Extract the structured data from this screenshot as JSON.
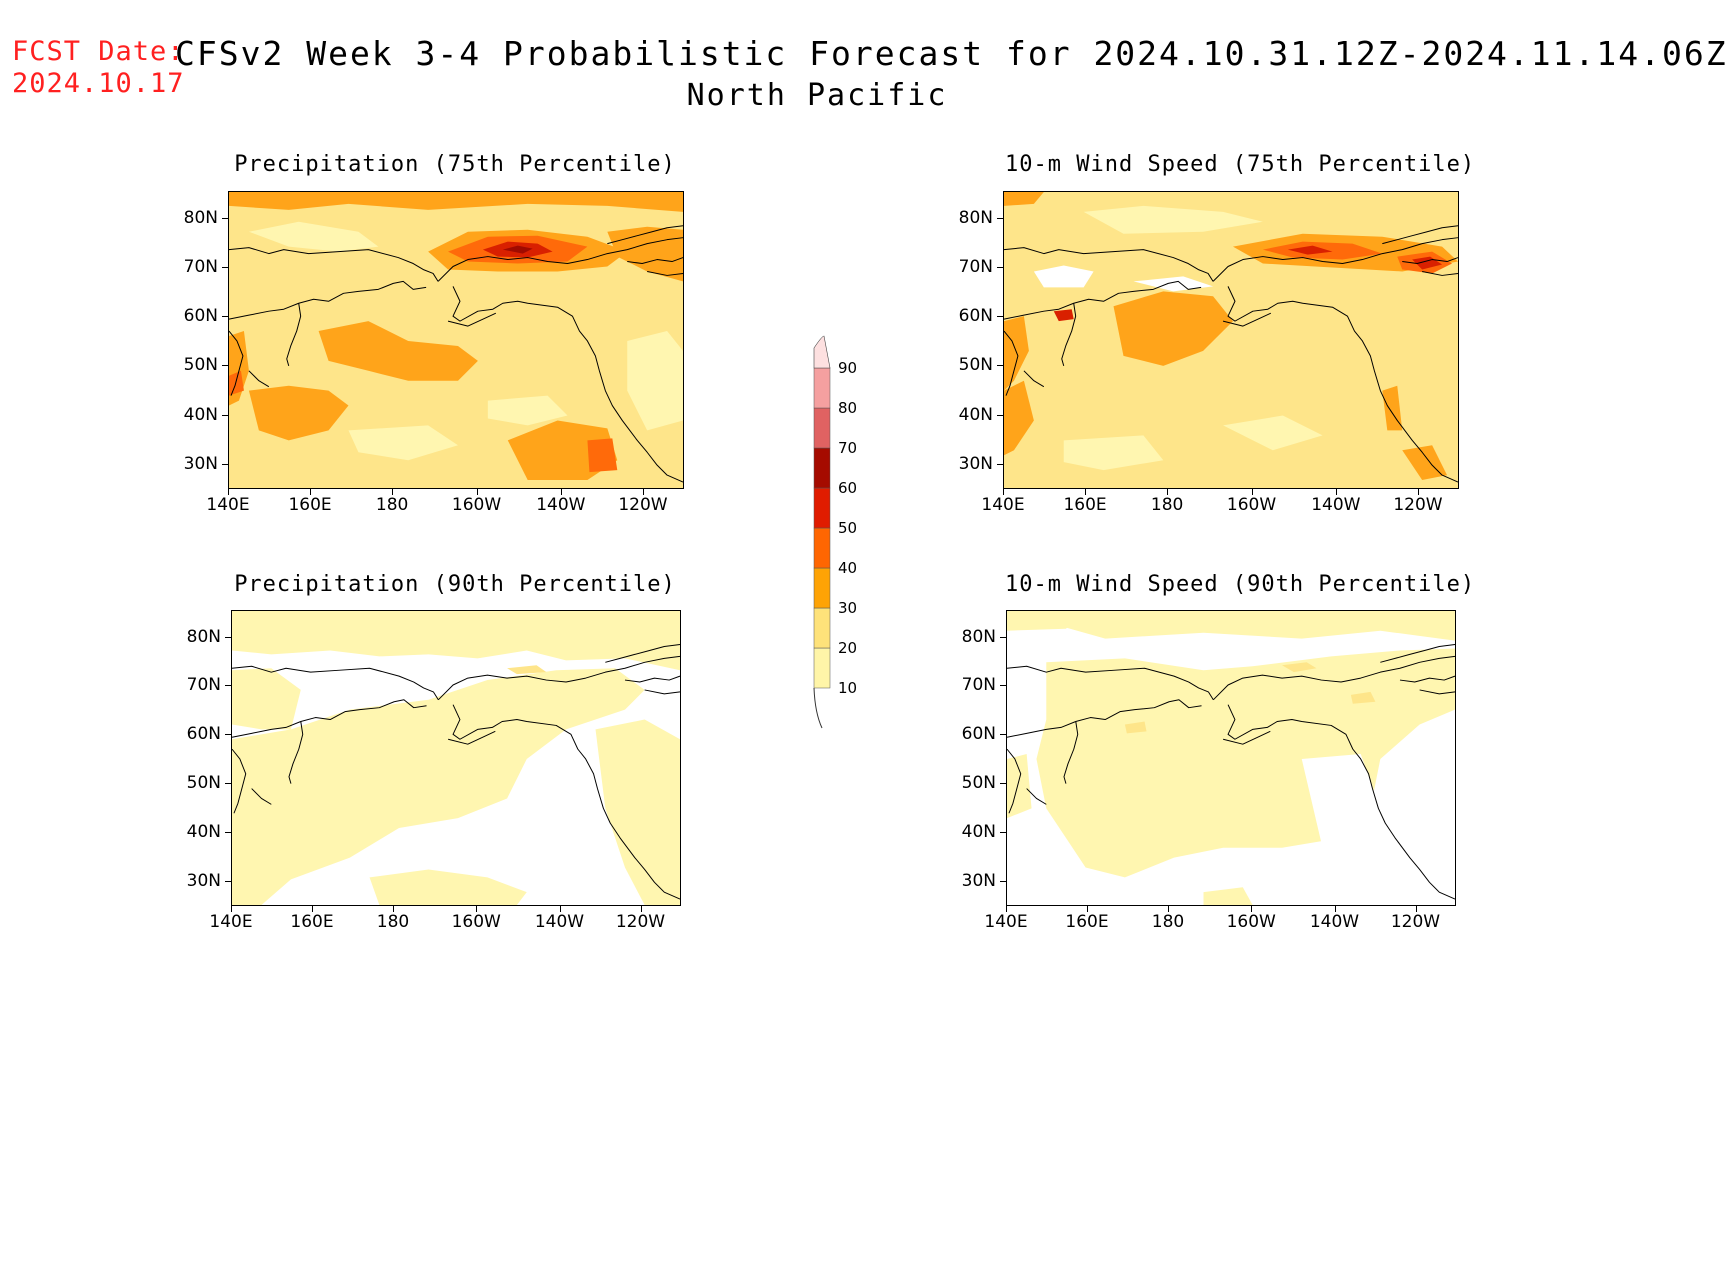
{
  "header": {
    "fcst_label": "FCST Date:",
    "fcst_date": "2024.10.17",
    "title": "CFSv2 Week 3-4 Probabilistic Forecast for 2024.10.31.12Z-2024.11.14.06Z",
    "subtitle": "North Pacific"
  },
  "axes": {
    "lat_labels": [
      "80N",
      "70N",
      "60N",
      "50N",
      "40N",
      "30N"
    ],
    "lon_labels": [
      "140E",
      "160E",
      "180",
      "160W",
      "140W",
      "120W"
    ]
  },
  "panels": [
    {
      "title": "Precipitation (75th Percentile)"
    },
    {
      "title": "10-m Wind Speed (75th Percentile)"
    },
    {
      "title": "Precipitation (90th Percentile)"
    },
    {
      "title": "10-m Wind Speed (90th Percentile)"
    }
  ],
  "colorbar": {
    "levels": [
      "10",
      "20",
      "30",
      "40",
      "50",
      "60",
      "70",
      "80",
      "90"
    ],
    "colors": [
      "#fff5a8",
      "#fee27a",
      "#fea305",
      "#ff6601",
      "#e01c00",
      "#a50b00",
      "#e06262",
      "#f5a0a0",
      "#fde0e0"
    ]
  },
  "palette": {
    "white": "#ffffff",
    "pale": "#fff6b0",
    "light": "#fee58a",
    "orange": "#ffa41a",
    "darkorange": "#ff6a0a",
    "red": "#d92000",
    "darkred": "#a00b00",
    "pink": "#f4c8c8",
    "fcst_text": "#ff2020"
  }
}
